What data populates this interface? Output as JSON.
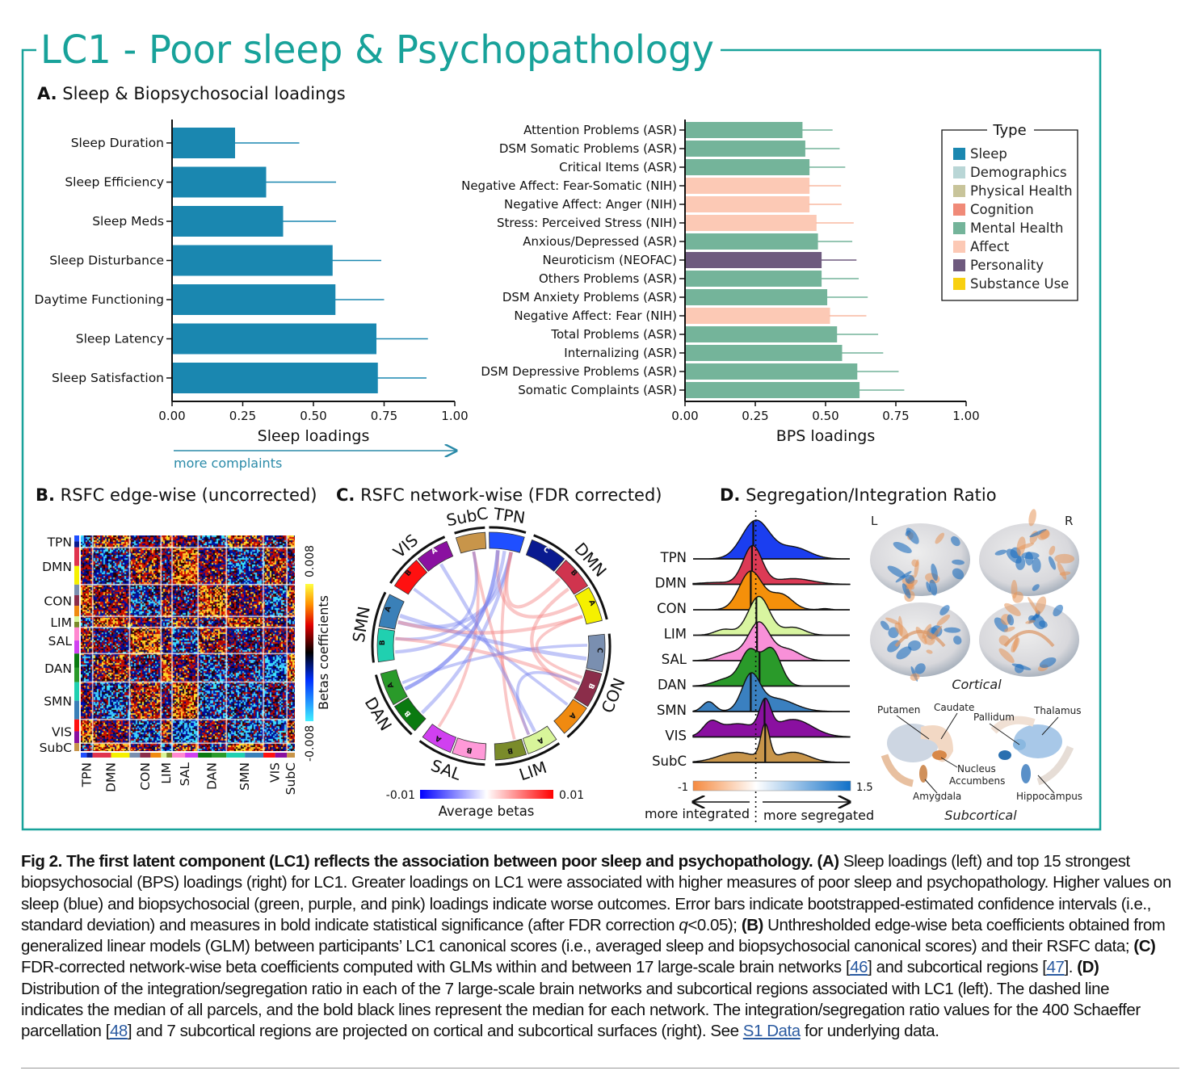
{
  "figure": {
    "title": "LC1 - Poor sleep & Psychopathology",
    "accent_color": "#18a29a",
    "panel_a": {
      "letter": "A.",
      "title": " Sleep & Biopsychosocial loadings"
    },
    "panel_b": {
      "letter": "B.",
      "title": " RSFC edge-wise (uncorrected)"
    },
    "panel_c": {
      "letter": "C.",
      "title": " RSFC network-wise (FDR corrected)"
    },
    "panel_d": {
      "letter": "D.",
      "title": " Segregation/Integration Ratio"
    },
    "more_complaints": "more complaints"
  },
  "chart_data": [
    {
      "type": "bar",
      "orientation": "horizontal",
      "xlabel": "Sleep loadings",
      "xlim": [
        0,
        1
      ],
      "xticks": [
        "0.00",
        "0.25",
        "0.50",
        "0.75",
        "1.00"
      ],
      "color": "#1a87b0",
      "categories": [
        "Sleep Duration",
        "Sleep Efficiency",
        "Sleep Meds",
        "Sleep Disturbance",
        "Daytime Functioning",
        "Sleep Latency",
        "Sleep Satisfaction"
      ],
      "values": [
        0.22,
        0.33,
        0.39,
        0.565,
        0.575,
        0.72,
        0.725
      ],
      "error_upper": [
        0.45,
        0.58,
        0.58,
        0.74,
        0.75,
        0.905,
        0.9
      ]
    },
    {
      "type": "bar",
      "orientation": "horizontal",
      "xlabel": "BPS loadings",
      "xlim": [
        0,
        1
      ],
      "xticks": [
        "0.00",
        "0.25",
        "0.50",
        "0.75",
        "1.00"
      ],
      "categories": [
        "Attention Problems (ASR)",
        "DSM Somatic Problems (ASR)",
        "Critical Items (ASR)",
        "Negative Affect: Fear-Somatic (NIH)",
        "Negative Affect: Anger (NIH)",
        "Stress: Perceived Stress (NIH)",
        "Anxious/Depressed (ASR)",
        "Neuroticism (NEOFAC)",
        "Others Problems (ASR)",
        "DSM Anxiety Problems (ASR)",
        "Negative Affect: Fear (NIH)",
        "Total Problems (ASR)",
        "Internalizing (ASR)",
        "DSM Depressive Problems (ASR)",
        "Somatic Complaints (ASR)"
      ],
      "values": [
        0.415,
        0.425,
        0.44,
        0.44,
        0.44,
        0.465,
        0.47,
        0.483,
        0.483,
        0.503,
        0.513,
        0.538,
        0.556,
        0.61,
        0.618
      ],
      "error_upper": [
        0.525,
        0.55,
        0.57,
        0.555,
        0.557,
        0.6,
        0.595,
        0.61,
        0.618,
        0.65,
        0.645,
        0.687,
        0.705,
        0.76,
        0.78
      ],
      "types": [
        "Mental Health",
        "Mental Health",
        "Mental Health",
        "Affect",
        "Affect",
        "Affect",
        "Mental Health",
        "Personality",
        "Mental Health",
        "Mental Health",
        "Affect",
        "Mental Health",
        "Mental Health",
        "Mental Health",
        "Mental Health"
      ],
      "legend": {
        "title": "Type",
        "placement": "top-right",
        "items": [
          {
            "label": "Sleep",
            "color": "#1a87b0"
          },
          {
            "label": "Demographics",
            "color": "#b9d6d6"
          },
          {
            "label": "Physical Health",
            "color": "#c8c49a"
          },
          {
            "label": "Cognition",
            "color": "#f08a78"
          },
          {
            "label": "Mental Health",
            "color": "#74b49a"
          },
          {
            "label": "Affect",
            "color": "#fcc9b5"
          },
          {
            "label": "Personality",
            "color": "#6e5a7e"
          },
          {
            "label": "Substance Use",
            "color": "#f8d010"
          }
        ]
      }
    },
    {
      "type": "heatmap",
      "networks": [
        {
          "label": "TPN",
          "size": 15,
          "colors": [
            "#1f4fff",
            "#0a1a90"
          ]
        },
        {
          "label": "DMN",
          "size": 47,
          "colors": [
            "#e0344e",
            "#f5f000"
          ]
        },
        {
          "label": "CON",
          "size": 40,
          "colors": [
            "#7a8fb0",
            "#8b2d4a",
            "#f08a10"
          ]
        },
        {
          "label": "LIM",
          "size": 14,
          "colors": [
            "#d8f59a",
            "#7a8b2a"
          ]
        },
        {
          "label": "SAL",
          "size": 33,
          "colors": [
            "#ff88d0",
            "#d040f0"
          ]
        },
        {
          "label": "DAN",
          "size": 36,
          "colors": [
            "#0a7a10",
            "#2a9a2a"
          ]
        },
        {
          "label": "SMN",
          "size": 47,
          "colors": [
            "#20d0b0",
            "#3a80b8"
          ]
        },
        {
          "label": "VIS",
          "size": 30,
          "colors": [
            "#ff1010",
            "#8a10a0"
          ]
        },
        {
          "label": "SubC",
          "size": 10,
          "colors": [
            "#c8954a"
          ]
        }
      ],
      "colorbar": {
        "label": "Betas coefficients",
        "min_label": "-0.008",
        "max_label": "0.008"
      }
    },
    {
      "type": "chord",
      "segments": [
        {
          "net": "TPN",
          "sub": "",
          "color": "#1f4fff"
        },
        {
          "net": "DMN",
          "sub": "C",
          "color": "#0a1a90"
        },
        {
          "net": "DMN",
          "sub": "B",
          "color": "#d0344e"
        },
        {
          "net": "DMN",
          "sub": "A",
          "color": "#f5f000"
        },
        {
          "net": "CON",
          "sub": "C",
          "color": "#7a8fb0"
        },
        {
          "net": "CON",
          "sub": "B",
          "color": "#8b2d4a"
        },
        {
          "net": "CON",
          "sub": "A",
          "color": "#f08a10"
        },
        {
          "net": "LIM",
          "sub": "A",
          "color": "#d8f59a"
        },
        {
          "net": "LIM",
          "sub": "B",
          "color": "#7a8b2a"
        },
        {
          "net": "SAL",
          "sub": "B",
          "color": "#ff99d8"
        },
        {
          "net": "SAL",
          "sub": "A",
          "color": "#d040f0"
        },
        {
          "net": "DAN",
          "sub": "B",
          "color": "#0a7a10"
        },
        {
          "net": "DAN",
          "sub": "A",
          "color": "#2a9a2a"
        },
        {
          "net": "SMN",
          "sub": "B",
          "color": "#20d0b0"
        },
        {
          "net": "SMN",
          "sub": "A",
          "color": "#3a80b8"
        },
        {
          "net": "VIS",
          "sub": "B",
          "color": "#ff1010"
        },
        {
          "net": "VIS",
          "sub": "A",
          "color": "#8a10a0"
        },
        {
          "net": "SubC",
          "sub": "",
          "color": "#c8954a"
        }
      ],
      "network_labels": [
        "TPN",
        "DMN",
        "CON",
        "LIM",
        "SAL",
        "DAN",
        "SMN",
        "VIS",
        "SubC"
      ],
      "links": [
        {
          "from": 0,
          "to": 12,
          "beta": -0.004
        },
        {
          "from": 0,
          "to": 11,
          "beta": -0.003
        },
        {
          "from": 0,
          "to": 14,
          "beta": -0.004
        },
        {
          "from": 0,
          "to": 3,
          "beta": 0.003
        },
        {
          "from": 0,
          "to": 8,
          "beta": 0.002
        },
        {
          "from": 0,
          "to": 2,
          "beta": 0.003
        },
        {
          "from": 17,
          "to": 7,
          "beta": 0.002
        },
        {
          "from": 17,
          "to": 10,
          "beta": 0.002
        },
        {
          "from": 17,
          "to": 13,
          "beta": -0.002
        },
        {
          "from": 16,
          "to": 7,
          "beta": -0.003
        },
        {
          "from": 15,
          "to": 6,
          "beta": -0.002
        },
        {
          "from": 14,
          "to": 4,
          "beta": -0.004
        },
        {
          "from": 14,
          "to": 3,
          "beta": 0.003
        },
        {
          "from": 13,
          "to": 5,
          "beta": 0.003
        },
        {
          "from": 13,
          "to": 0,
          "beta": -0.003
        },
        {
          "from": 12,
          "to": 4,
          "beta": -0.002
        },
        {
          "from": 12,
          "to": 0,
          "beta": -0.003
        },
        {
          "from": 2,
          "to": 5,
          "beta": 0.003
        },
        {
          "from": 3,
          "to": 5,
          "beta": 0.002
        },
        {
          "from": 7,
          "to": 5,
          "beta": -0.002
        }
      ],
      "colorbar": {
        "label": "Average betas",
        "min_label": "-0.01",
        "max_label": "0.01"
      }
    },
    {
      "type": "ridgeline",
      "xlim": [
        -1,
        1.5
      ],
      "overall_median": 0,
      "networks": [
        {
          "label": "TPN",
          "color": "#1b3ef0",
          "median": -0.04,
          "components": [
            [
              0,
              0.22,
              1
            ],
            [
              0.6,
              0.25,
              0.3
            ]
          ]
        },
        {
          "label": "DMN",
          "color": "#dc3a55",
          "median": -0.06,
          "components": [
            [
              -0.05,
              0.15,
              1
            ],
            [
              0.6,
              0.3,
              0.15
            ],
            [
              -0.6,
              0.3,
              0.05
            ]
          ]
        },
        {
          "label": "CON",
          "color": "#f5900a",
          "median": -0.08,
          "components": [
            [
              -0.08,
              0.18,
              1
            ],
            [
              0.4,
              0.18,
              0.4
            ],
            [
              1.1,
              0.08,
              0.03
            ]
          ]
        },
        {
          "label": "LIM",
          "color": "#d8f5a0",
          "median": 0.01,
          "components": [
            [
              0.05,
              0.17,
              1
            ],
            [
              -0.5,
              0.15,
              0.15
            ],
            [
              0.6,
              0.18,
              0.2
            ]
          ]
        },
        {
          "label": "SAL",
          "color": "#f890d8",
          "median": 0.02,
          "components": [
            [
              0.05,
              0.17,
              1
            ],
            [
              -0.4,
              0.2,
              0.2
            ],
            [
              0.5,
              0.2,
              0.3
            ]
          ]
        },
        {
          "label": "DAN",
          "color": "#2a9a2a",
          "median": 0.06,
          "components": [
            [
              -0.1,
              0.14,
              0.9
            ],
            [
              0.25,
              0.15,
              1
            ],
            [
              -0.45,
              0.2,
              0.2
            ]
          ]
        },
        {
          "label": "SMN",
          "color": "#3a80c0",
          "median": -0.08,
          "components": [
            [
              -0.08,
              0.14,
              1
            ],
            [
              -0.75,
              0.1,
              0.3
            ],
            [
              0.3,
              0.3,
              0.4
            ]
          ]
        },
        {
          "label": "VIS",
          "color": "#8a10a0",
          "median": 0.14,
          "components": [
            [
              0.15,
              0.09,
              1
            ],
            [
              -0.72,
              0.12,
              0.4
            ],
            [
              0.6,
              0.3,
              0.6
            ],
            [
              -0.3,
              0.3,
              0.45
            ]
          ]
        },
        {
          "label": "SubC",
          "color": "#c8954a",
          "median": 0.15,
          "components": [
            [
              0.15,
              0.07,
              1
            ],
            [
              -0.3,
              0.3,
              0.3
            ],
            [
              0.6,
              0.25,
              0.3
            ]
          ]
        }
      ],
      "colorbar": {
        "min_label": "-1",
        "max_label": "1.5",
        "low_color": "#f58a40",
        "high_color": "#1070c8"
      },
      "left_arrow_label": "more integrated",
      "right_arrow_label": "more segregated"
    }
  ],
  "brain": {
    "left": "L",
    "right": "R",
    "cortical": "Cortical",
    "subcortical": "Subcortical",
    "regions": [
      "Putamen",
      "Caudate",
      "Pallidum",
      "Thalamus",
      "Nucleus",
      "Accumbens",
      "Amygdala",
      "Hippocampus"
    ]
  },
  "caption": {
    "s0": "Fig 2.  The first latent component (LC1) reflects the association between poor sleep and psychopathology. ",
    "s1": "(A)",
    "s2": " Sleep loadings (left) and top 15 strongest biopsychosocial (BPS) loadings (right) for LC1. Greater loadings on LC1 were associated with higher measures of poor sleep and psy­chopathology. Higher values on sleep (blue) and biopsychosocial (green, purple, and pink) loadings indicate worse outcomes. Error bars indicate bootstrapped-estimated confidence intervals (i.e., standard deviation) and measures in bold indicate statistical significance (after FDR correction ",
    "s3": "q",
    "s4": "<0.05); ",
    "s5": "(B)",
    "s6": " Unthresholded edge-wise beta coefficients obtained from generalized linear models (GLM) between participants’ LC1 canonical scores (i.e., averaged sleep and biopsychosocial canonical scores) and their RSFC data; ",
    "s7": "(C)",
    "s8": " FDR-corrected network-wise beta coefficients computed with GLMs within and between 17 large-scale brain networks [",
    "s9": "46",
    "s10": "] and subcortical regions [",
    "s11": "47",
    "s12": "]. ",
    "s13": "(D)",
    "s14": " Distribution of the integration/segregation ratio in each of the 7 large-scale brain networks and subcortical regions associated with LC1 (left). The dashed line indicates the median of all parcels, and the bold black lines represent the median for each network. The integration/segregation ratio values for the 400 Schaeffer parcellation [",
    "s15": "48",
    "s16": "] and 7 subcortical regions are projected on cortical and subcortical surfaces (right). See ",
    "s17": "S1 Data",
    "s18": " for underlying data."
  }
}
